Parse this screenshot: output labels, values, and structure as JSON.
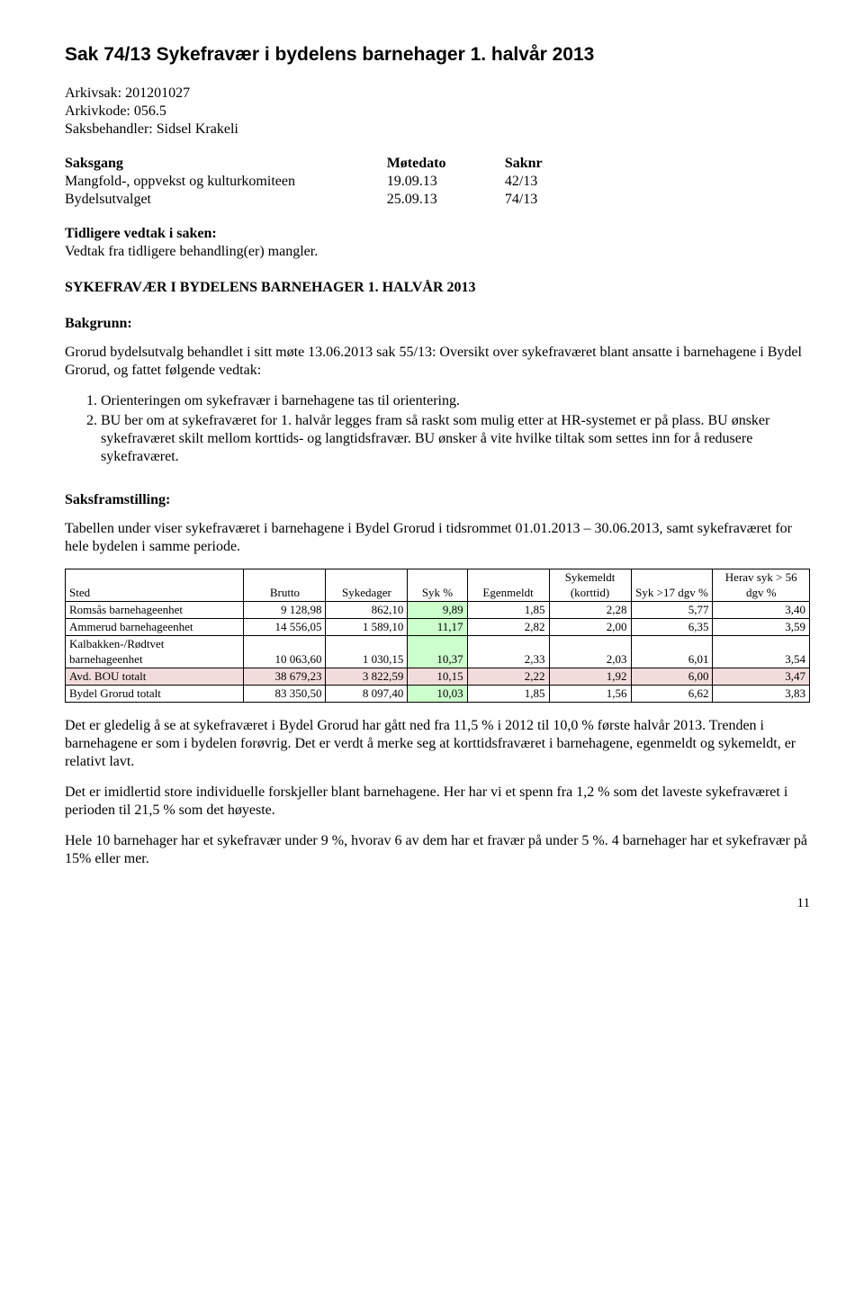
{
  "title": "Sak 74/13   Sykefravær i bydelens barnehager 1. halvår 2013",
  "meta": {
    "arkivsak_label": "Arkivsak: ",
    "arkivsak": "201201027",
    "arkivkode_label": "Arkivkode: ",
    "arkivkode": "056.5",
    "saksbehandler_label": "Saksbehandler: ",
    "saksbehandler": "Sidsel Krakeli"
  },
  "saksgang": {
    "headers": [
      "Saksgang",
      "Møtedato",
      "Saknr"
    ],
    "rows": [
      [
        "Mangfold-, oppvekst og kulturkomiteen",
        "19.09.13",
        "42/13"
      ],
      [
        "Bydelsutvalget",
        "25.09.13",
        "74/13"
      ]
    ]
  },
  "tidligere_head": "Tidligere vedtak i saken:",
  "tidligere_body": "Vedtak fra tidligere behandling(er) mangler.",
  "doc_caps_title": "SYKEFRAVÆR I BYDELENS BARNEHAGER 1. HALVÅR 2013",
  "bakgrunn_head": "Bakgrunn:",
  "bakgrunn_intro": "Grorud bydelsutvalg behandlet i sitt møte 13.06.2013 sak 55/13: Oversikt over sykefraværet blant ansatte i barnehagene i Bydel Grorud, og fattet følgende vedtak:",
  "bakgrunn_items": [
    "Orienteringen om sykefravær i barnehagene tas til orientering.",
    "BU ber om at sykefraværet for 1. halvår legges fram så raskt som mulig etter at HR-systemet er på plass. BU ønsker sykefraværet skilt mellom korttids- og langtidsfravær. BU ønsker å vite hvilke tiltak som settes inn for å redusere sykefraværet."
  ],
  "saksfram_head": "Saksframstilling:",
  "saksfram_intro": "Tabellen under viser sykefraværet i barnehagene i Bydel Grorud i tidsrommet 01.01.2013 – 30.06.2013, samt sykefraværet for hele bydelen i samme periode.",
  "table": {
    "columns": [
      "Sted",
      "Brutto",
      "Sykedager",
      "Syk %",
      "Egenmeldt",
      "Sykemeldt (korttid)",
      "Syk >17 dgv %",
      "Herav syk > 56 dgv %"
    ],
    "col_widths_pct": [
      24,
      11,
      11,
      8,
      11,
      11,
      11,
      13
    ],
    "highlight_green_col_index": 3,
    "highlight_pink_row_index": 3,
    "rows": [
      [
        "Romsås barnehageenhet",
        "9 128,98",
        "862,10",
        "9,89",
        "1,85",
        "2,28",
        "5,77",
        "3,40"
      ],
      [
        "Ammerud barnehageenhet",
        "14 556,05",
        "1 589,10",
        "11,17",
        "2,82",
        "2,00",
        "6,35",
        "3,59"
      ],
      [
        "Kalbakken-/Rødtvet barnehageenhet",
        "10 063,60",
        "1 030,15",
        "10,37",
        "2,33",
        "2,03",
        "6,01",
        "3,54"
      ],
      [
        "Avd. BOU totalt",
        "38 679,23",
        "3 822,59",
        "10,15",
        "2,22",
        "1,92",
        "6,00",
        "3,47"
      ],
      [
        "Bydel Grorud totalt",
        "83 350,50",
        "8 097,40",
        "10,03",
        "1,85",
        "1,56",
        "6,62",
        "3,83"
      ]
    ]
  },
  "body_paras": [
    "Det er gledelig å se at sykefraværet i Bydel Grorud har gått ned fra 11,5 % i 2012 til 10,0 % første halvår 2013. Trenden i barnehagene er som i bydelen forøvrig.  Det er verdt å merke seg at korttidsfraværet i barnehagene, egenmeldt og sykemeldt, er relativt lavt.",
    "Det er imidlertid store individuelle forskjeller blant barnehagene. Her har vi et spenn fra 1,2 % som det laveste sykefraværet i perioden til 21,5 % som det høyeste.",
    "Hele 10 barnehager har et sykefravær under 9 %, hvorav 6 av dem har et fravær på under 5 %. 4 barnehager har et sykefravær på 15% eller mer."
  ],
  "page_number": "11"
}
